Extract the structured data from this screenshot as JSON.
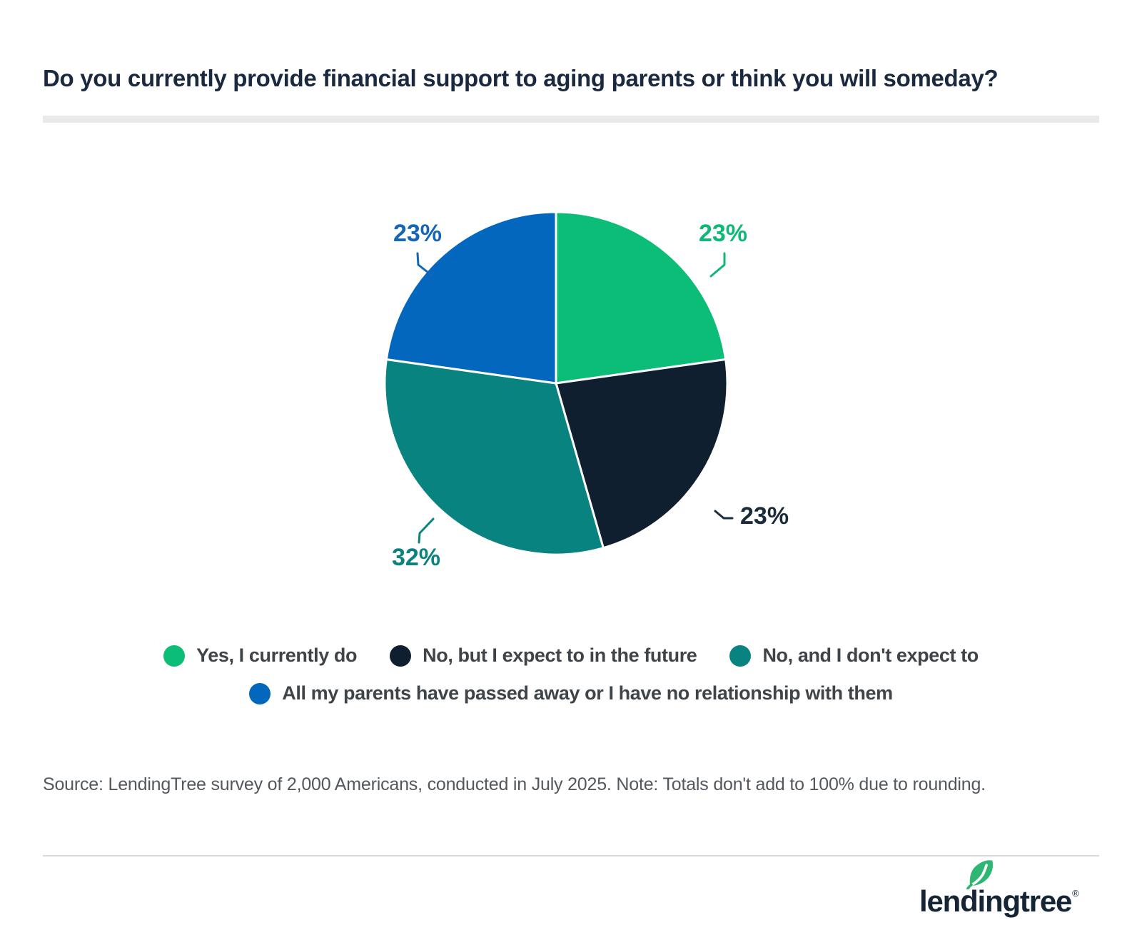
{
  "title": "Do you currently provide financial support to aging parents or think you will someday?",
  "chart_data": {
    "type": "pie",
    "title": "Do you currently provide financial support to aging parents or think you will someday?",
    "start_angle_deg": 0,
    "direction": "clockwise",
    "legend_position": "bottom",
    "note": "Totals don't add to 100% due to rounding.",
    "series": [
      {
        "label": "Yes, I currently do",
        "value": 23,
        "display": "23%",
        "color": "#0cbd77",
        "label_color": "#10b878"
      },
      {
        "label": "No, but I expect to in the future",
        "value": 23,
        "display": "23%",
        "color": "#101f2f",
        "label_color": "#1b2b3c"
      },
      {
        "label": "No, and I don't expect to",
        "value": 32,
        "display": "32%",
        "color": "#098380",
        "label_color": "#0b827f"
      },
      {
        "label": "All my parents have passed away or I have no relationship with them",
        "value": 23,
        "display": "23%",
        "color": "#0368bd",
        "label_color": "#1566b5"
      }
    ]
  },
  "source_note": "Source: LendingTree survey of 2,000 Americans, conducted in July 2025. Note: Totals don't add to 100% due to rounding.",
  "logo": {
    "text": "lendingtree",
    "registered_mark": "®",
    "leaf_color": "#2eb672",
    "text_color": "#152536"
  }
}
